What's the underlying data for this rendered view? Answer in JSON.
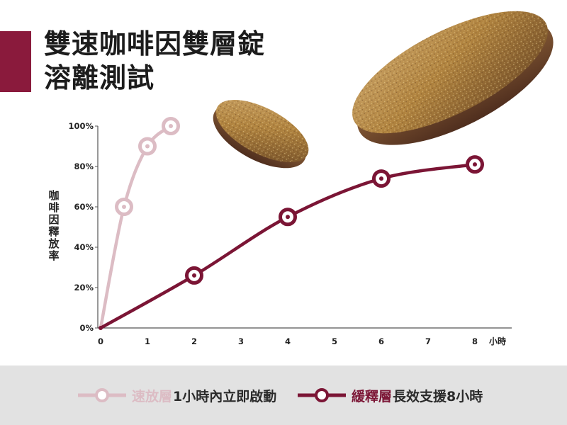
{
  "title": {
    "line1": "雙速咖啡因雙層錠",
    "line2": "溶離測試"
  },
  "colors": {
    "accent": "#8a1a3c",
    "fast": "#dcbcc4",
    "slow": "#7b1535",
    "legend_bg": "#e2e2e2"
  },
  "images": [
    "tablet-small",
    "tablet-large"
  ],
  "legend": {
    "fast": {
      "name": "速放層",
      "desc": "1小時內立即啟動"
    },
    "slow": {
      "name": "緩釋層",
      "desc": "長效支援8小時"
    }
  },
  "chart_data": {
    "type": "line",
    "title": "",
    "xlabel": "小時",
    "ylabel": "咖啡因釋放率",
    "xlim": [
      0,
      8
    ],
    "ylim": [
      0,
      100
    ],
    "x_ticks": [
      "0",
      "1",
      "2",
      "3",
      "4",
      "5",
      "6",
      "7",
      "8"
    ],
    "y_ticks": [
      "0%",
      "20%",
      "40%",
      "60%",
      "80%",
      "100%"
    ],
    "grid": false,
    "legend_position": "bottom",
    "series": [
      {
        "name": "速放層",
        "x": [
          0,
          0.5,
          1,
          1.5
        ],
        "y": [
          0,
          60,
          90,
          100
        ]
      },
      {
        "name": "緩釋層",
        "x": [
          0,
          2,
          4,
          6,
          8
        ],
        "y": [
          0,
          26,
          55,
          74,
          81
        ]
      }
    ]
  }
}
